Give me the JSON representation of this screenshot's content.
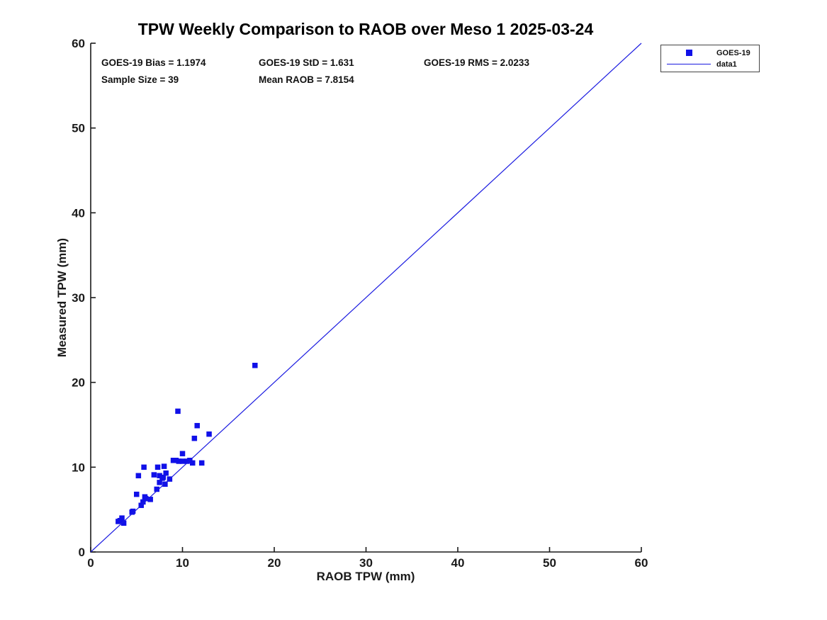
{
  "page": {
    "title": "TPW Weekly Comparison to RAOB over Meso 1 2025-03-24"
  },
  "stats": {
    "bias": "GOES-19 Bias = 1.1974",
    "std": "GOES-19 StD = 1.631",
    "rms": "GOES-19 RMS = 2.0233",
    "sample_size": "Sample Size = 39",
    "mean_raob": "Mean RAOB = 7.8154"
  },
  "legend": {
    "entries": [
      {
        "label": "GOES-19",
        "marker": "square"
      },
      {
        "label": "data1",
        "marker": "line"
      }
    ]
  },
  "colors": {
    "marker_blue": "#1010E8",
    "line_blue": "#1A1AE0",
    "axis": "#1a1a1a"
  },
  "chart_data": {
    "type": "scatter",
    "title": "TPW Weekly Comparison to RAOB over Meso 1 2025-03-24",
    "xlabel": "RAOB TPW (mm)",
    "ylabel": "Measured TPW (mm)",
    "xlim": [
      0,
      60
    ],
    "ylim": [
      0,
      60
    ],
    "xticks": [
      0,
      10,
      20,
      30,
      40,
      50,
      60
    ],
    "yticks": [
      0,
      10,
      20,
      30,
      40,
      50,
      60
    ],
    "grid": false,
    "legend_position": "top-right-outside",
    "series": [
      {
        "name": "GOES-19",
        "type": "scatter",
        "marker": "square",
        "color": "#1010E8",
        "points": [
          [
            3.0,
            3.6
          ],
          [
            3.4,
            4.0
          ],
          [
            3.6,
            3.4
          ],
          [
            3.2,
            3.7
          ],
          [
            4.5,
            4.7
          ],
          [
            4.6,
            4.8
          ],
          [
            5.5,
            5.5
          ],
          [
            5.0,
            6.8
          ],
          [
            5.9,
            6.5
          ],
          [
            5.7,
            5.9
          ],
          [
            6.0,
            6.3
          ],
          [
            6.5,
            6.2
          ],
          [
            7.2,
            7.4
          ],
          [
            8.1,
            8.0
          ],
          [
            5.2,
            9.0
          ],
          [
            6.9,
            9.1
          ],
          [
            7.5,
            9.0
          ],
          [
            7.8,
            8.7
          ],
          [
            8.2,
            9.3
          ],
          [
            8.6,
            8.6
          ],
          [
            7.9,
            8.8
          ],
          [
            7.5,
            8.2
          ],
          [
            5.8,
            10.0
          ],
          [
            7.3,
            10.0
          ],
          [
            8.0,
            10.1
          ],
          [
            9.0,
            10.8
          ],
          [
            9.3,
            10.8
          ],
          [
            9.6,
            10.7
          ],
          [
            10.0,
            11.6
          ],
          [
            10.0,
            10.7
          ],
          [
            10.5,
            10.7
          ],
          [
            10.8,
            10.8
          ],
          [
            11.1,
            10.5
          ],
          [
            12.1,
            10.5
          ],
          [
            9.5,
            16.6
          ],
          [
            11.6,
            14.9
          ],
          [
            11.3,
            13.4
          ],
          [
            12.9,
            13.9
          ],
          [
            17.9,
            22.0
          ]
        ]
      },
      {
        "name": "data1",
        "type": "line",
        "color": "#1A1AE0",
        "points": [
          [
            0,
            0
          ],
          [
            60,
            60
          ]
        ]
      }
    ]
  }
}
